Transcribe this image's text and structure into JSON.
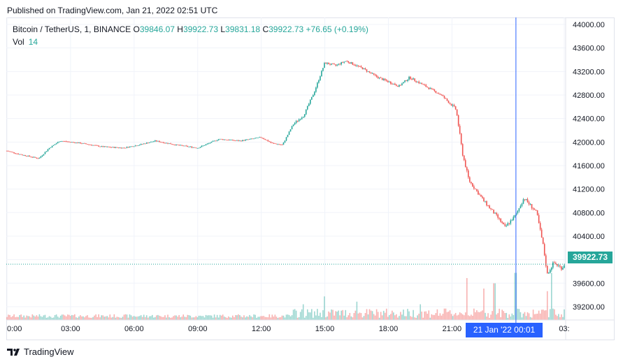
{
  "published": "Published on TradingView.com, Jan 21, 2022 02:51 UTC",
  "legend": {
    "symbol": "Bitcoin / TetherUS, 1, BINANCE",
    "open_label": "O",
    "open": "39846.07",
    "high_label": "H",
    "high": "39922.73",
    "low_label": "L",
    "low": "39831.18",
    "close_label": "C",
    "close": "39922.73",
    "change": "+76.65 (+0.19%)"
  },
  "volume": {
    "label": "Vol",
    "value": "14"
  },
  "cursor_label": "21 Jan '22   00:01",
  "last_price_tag": "39922.73",
  "footer_brand": "TradingView",
  "colors": {
    "up": "#26a69a",
    "down": "#ef5350",
    "cursor": "#2962ff",
    "grid": "#f0f3fa"
  },
  "chart_data": {
    "type": "candlestick",
    "x_tick_labels": [
      "0:00",
      "03:00",
      "06:00",
      "09:00",
      "12:00",
      "15:00",
      "18:00",
      "21:00",
      "03:"
    ],
    "y_tick_labels": [
      "39200.00",
      "39600.00",
      "40000.00",
      "40400.00",
      "40800.00",
      "41200.00",
      "41600.00",
      "42000.00",
      "42400.00",
      "42800.00",
      "43200.00",
      "43600.00",
      "44000.00"
    ],
    "ylim": [
      38950,
      44000
    ],
    "grid": true,
    "price_path": [
      [
        0,
        41850
      ],
      [
        0.5,
        41800
      ],
      [
        1.5,
        41720
      ],
      [
        2.0,
        41900
      ],
      [
        2.5,
        42020
      ],
      [
        3.5,
        41980
      ],
      [
        4.5,
        41920
      ],
      [
        5.5,
        41900
      ],
      [
        6.2,
        41950
      ],
      [
        7.0,
        42020
      ],
      [
        8.0,
        41950
      ],
      [
        9.0,
        41900
      ],
      [
        10.0,
        42050
      ],
      [
        11.0,
        42020
      ],
      [
        12.0,
        42080
      ],
      [
        12.5,
        41980
      ],
      [
        13.0,
        41950
      ],
      [
        13.5,
        42300
      ],
      [
        14.0,
        42450
      ],
      [
        14.5,
        42850
      ],
      [
        15.0,
        43350
      ],
      [
        15.5,
        43300
      ],
      [
        16.0,
        43380
      ],
      [
        16.8,
        43250
      ],
      [
        17.5,
        43100
      ],
      [
        18.5,
        42950
      ],
      [
        19.0,
        43100
      ],
      [
        19.5,
        43000
      ],
      [
        20.5,
        42800
      ],
      [
        21.2,
        42550
      ],
      [
        21.5,
        41800
      ],
      [
        21.8,
        41350
      ],
      [
        22.5,
        41000
      ],
      [
        23.2,
        40700
      ],
      [
        23.5,
        40550
      ],
      [
        24.0,
        40750
      ],
      [
        24.4,
        41050
      ],
      [
        25.0,
        40800
      ],
      [
        25.3,
        40250
      ],
      [
        25.5,
        39750
      ],
      [
        25.8,
        39950
      ],
      [
        26.2,
        39850
      ],
      [
        26.3,
        39920
      ]
    ],
    "volume_spikes": [
      [
        14.0,
        0.3
      ],
      [
        15.0,
        0.45
      ],
      [
        16.5,
        0.35
      ],
      [
        19.5,
        0.3
      ],
      [
        21.7,
        0.8
      ],
      [
        22.5,
        0.6
      ],
      [
        23.0,
        0.7
      ],
      [
        24.0,
        0.9
      ],
      [
        25.5,
        0.55
      ],
      [
        25.7,
        0.9
      ]
    ]
  }
}
